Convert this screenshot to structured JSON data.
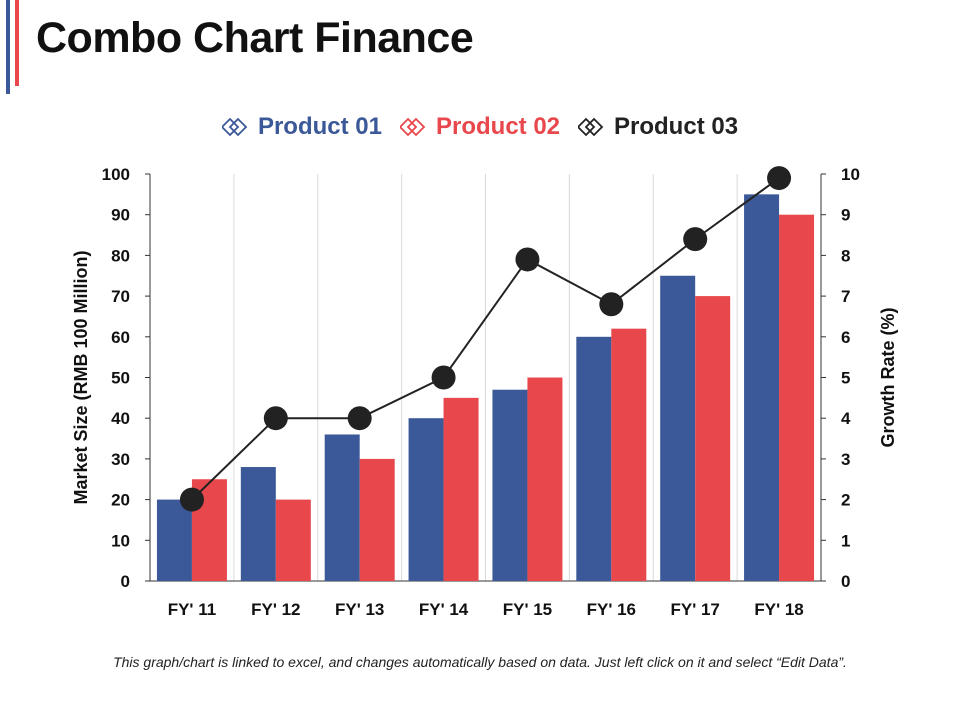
{
  "slide": {
    "title": "Combo Chart Finance",
    "footnote": "This graph/chart is linked to excel, and changes automatically based on data.  Just left click on it and select “Edit Data”.",
    "accent_colors": [
      "#3b5998",
      "#e8474c"
    ]
  },
  "chart_data": {
    "type": "bar",
    "title": "Combo Chart Finance",
    "categories": [
      "FY' 11",
      "FY' 12",
      "FY' 13",
      "FY' 14",
      "FY' 15",
      "FY' 16",
      "FY' 17",
      "FY' 18"
    ],
    "series": [
      {
        "name": "Product 01",
        "type": "bar",
        "axis": "left",
        "color": "#3b5998",
        "values": [
          20,
          28,
          36,
          40,
          47,
          60,
          75,
          95
        ]
      },
      {
        "name": "Product 02",
        "type": "bar",
        "axis": "left",
        "color": "#e8474c",
        "values": [
          25,
          20,
          30,
          45,
          50,
          62,
          70,
          90
        ]
      },
      {
        "name": "Product 03",
        "type": "line",
        "axis": "right",
        "color": "#222222",
        "values": [
          2,
          4,
          4,
          5,
          7.9,
          6.8,
          8.4,
          9.9
        ]
      }
    ],
    "ylabel": "Market Size (RMB 100 Million)",
    "y2label": "Growth Rate (%)",
    "ylim": [
      0,
      100
    ],
    "y2lim": [
      0,
      10
    ],
    "yticks": [
      0,
      10,
      20,
      30,
      40,
      50,
      60,
      70,
      80,
      90,
      100
    ],
    "y2ticks": [
      0,
      1,
      2,
      3,
      4,
      5,
      6,
      7,
      8,
      9,
      10
    ],
    "grid": "vertical",
    "legend": "top-center"
  }
}
